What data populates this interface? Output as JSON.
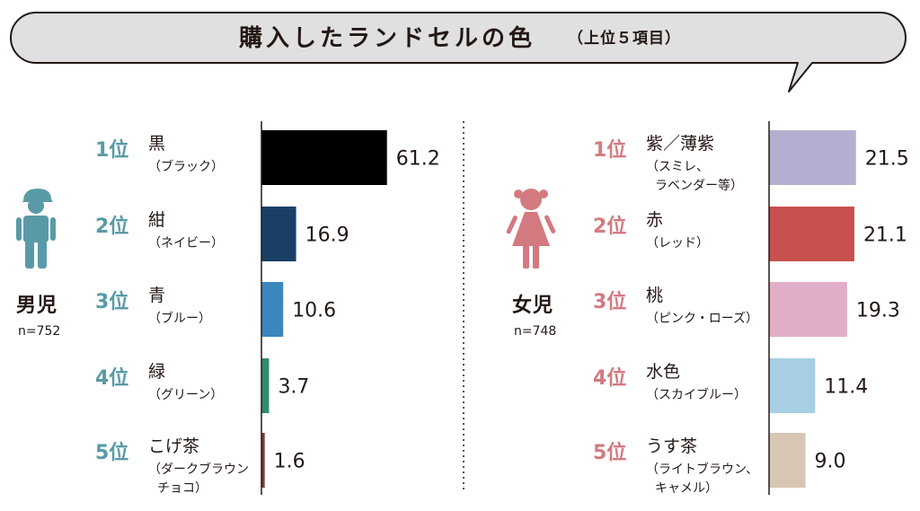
{
  "title": "購入したランドセルの色",
  "subtitle": "（上位５項目）",
  "colors": {
    "male_accent": "#5a9aa7",
    "female_accent": "#d37a80"
  },
  "icons": {
    "male": "boy-figure-icon",
    "female": "girl-figure-icon"
  },
  "chart_data": [
    {
      "type": "bar",
      "orientation": "horizontal",
      "group": "男児",
      "n_label": "n=752",
      "ranks": [
        "1位",
        "2位",
        "3位",
        "4位",
        "5位"
      ],
      "categories": [
        "黒",
        "紺",
        "青",
        "緑",
        "こげ茶"
      ],
      "subcategories": [
        "（ブラック）",
        "（ネイビー）",
        "（ブルー）",
        "（グリーン）",
        "（ダークブラウン\nチョコ）"
      ],
      "values": [
        61.2,
        16.9,
        10.6,
        3.7,
        1.6
      ],
      "value_labels": [
        "61.2",
        "16.9",
        "10.6",
        "3.7",
        "1.6"
      ],
      "colors": [
        "#000000",
        "#1a3f66",
        "#3a86bd",
        "#2f8c6f",
        "#7a3b33"
      ],
      "xlim": [
        0,
        100
      ]
    },
    {
      "type": "bar",
      "orientation": "horizontal",
      "group": "女児",
      "n_label": "n=748",
      "ranks": [
        "1位",
        "2位",
        "3位",
        "4位",
        "5位"
      ],
      "categories": [
        "紫／薄紫",
        "赤",
        "桃",
        "水色",
        "うす茶"
      ],
      "subcategories": [
        "（スミレ、\nラベンダー等）",
        "（レッド）",
        "（ピンク・ローズ）",
        "（スカイブルー）",
        "（ライトブラウン、\nキャメル）"
      ],
      "values": [
        21.5,
        21.1,
        19.3,
        11.4,
        9.0
      ],
      "value_labels": [
        "21.5",
        "21.1",
        "19.3",
        "11.4",
        "9.0"
      ],
      "colors": [
        "#b4afd0",
        "#c8514f",
        "#e2adc7",
        "#a6cfe4",
        "#d7c6b3"
      ],
      "xlim": [
        0,
        100
      ]
    }
  ]
}
